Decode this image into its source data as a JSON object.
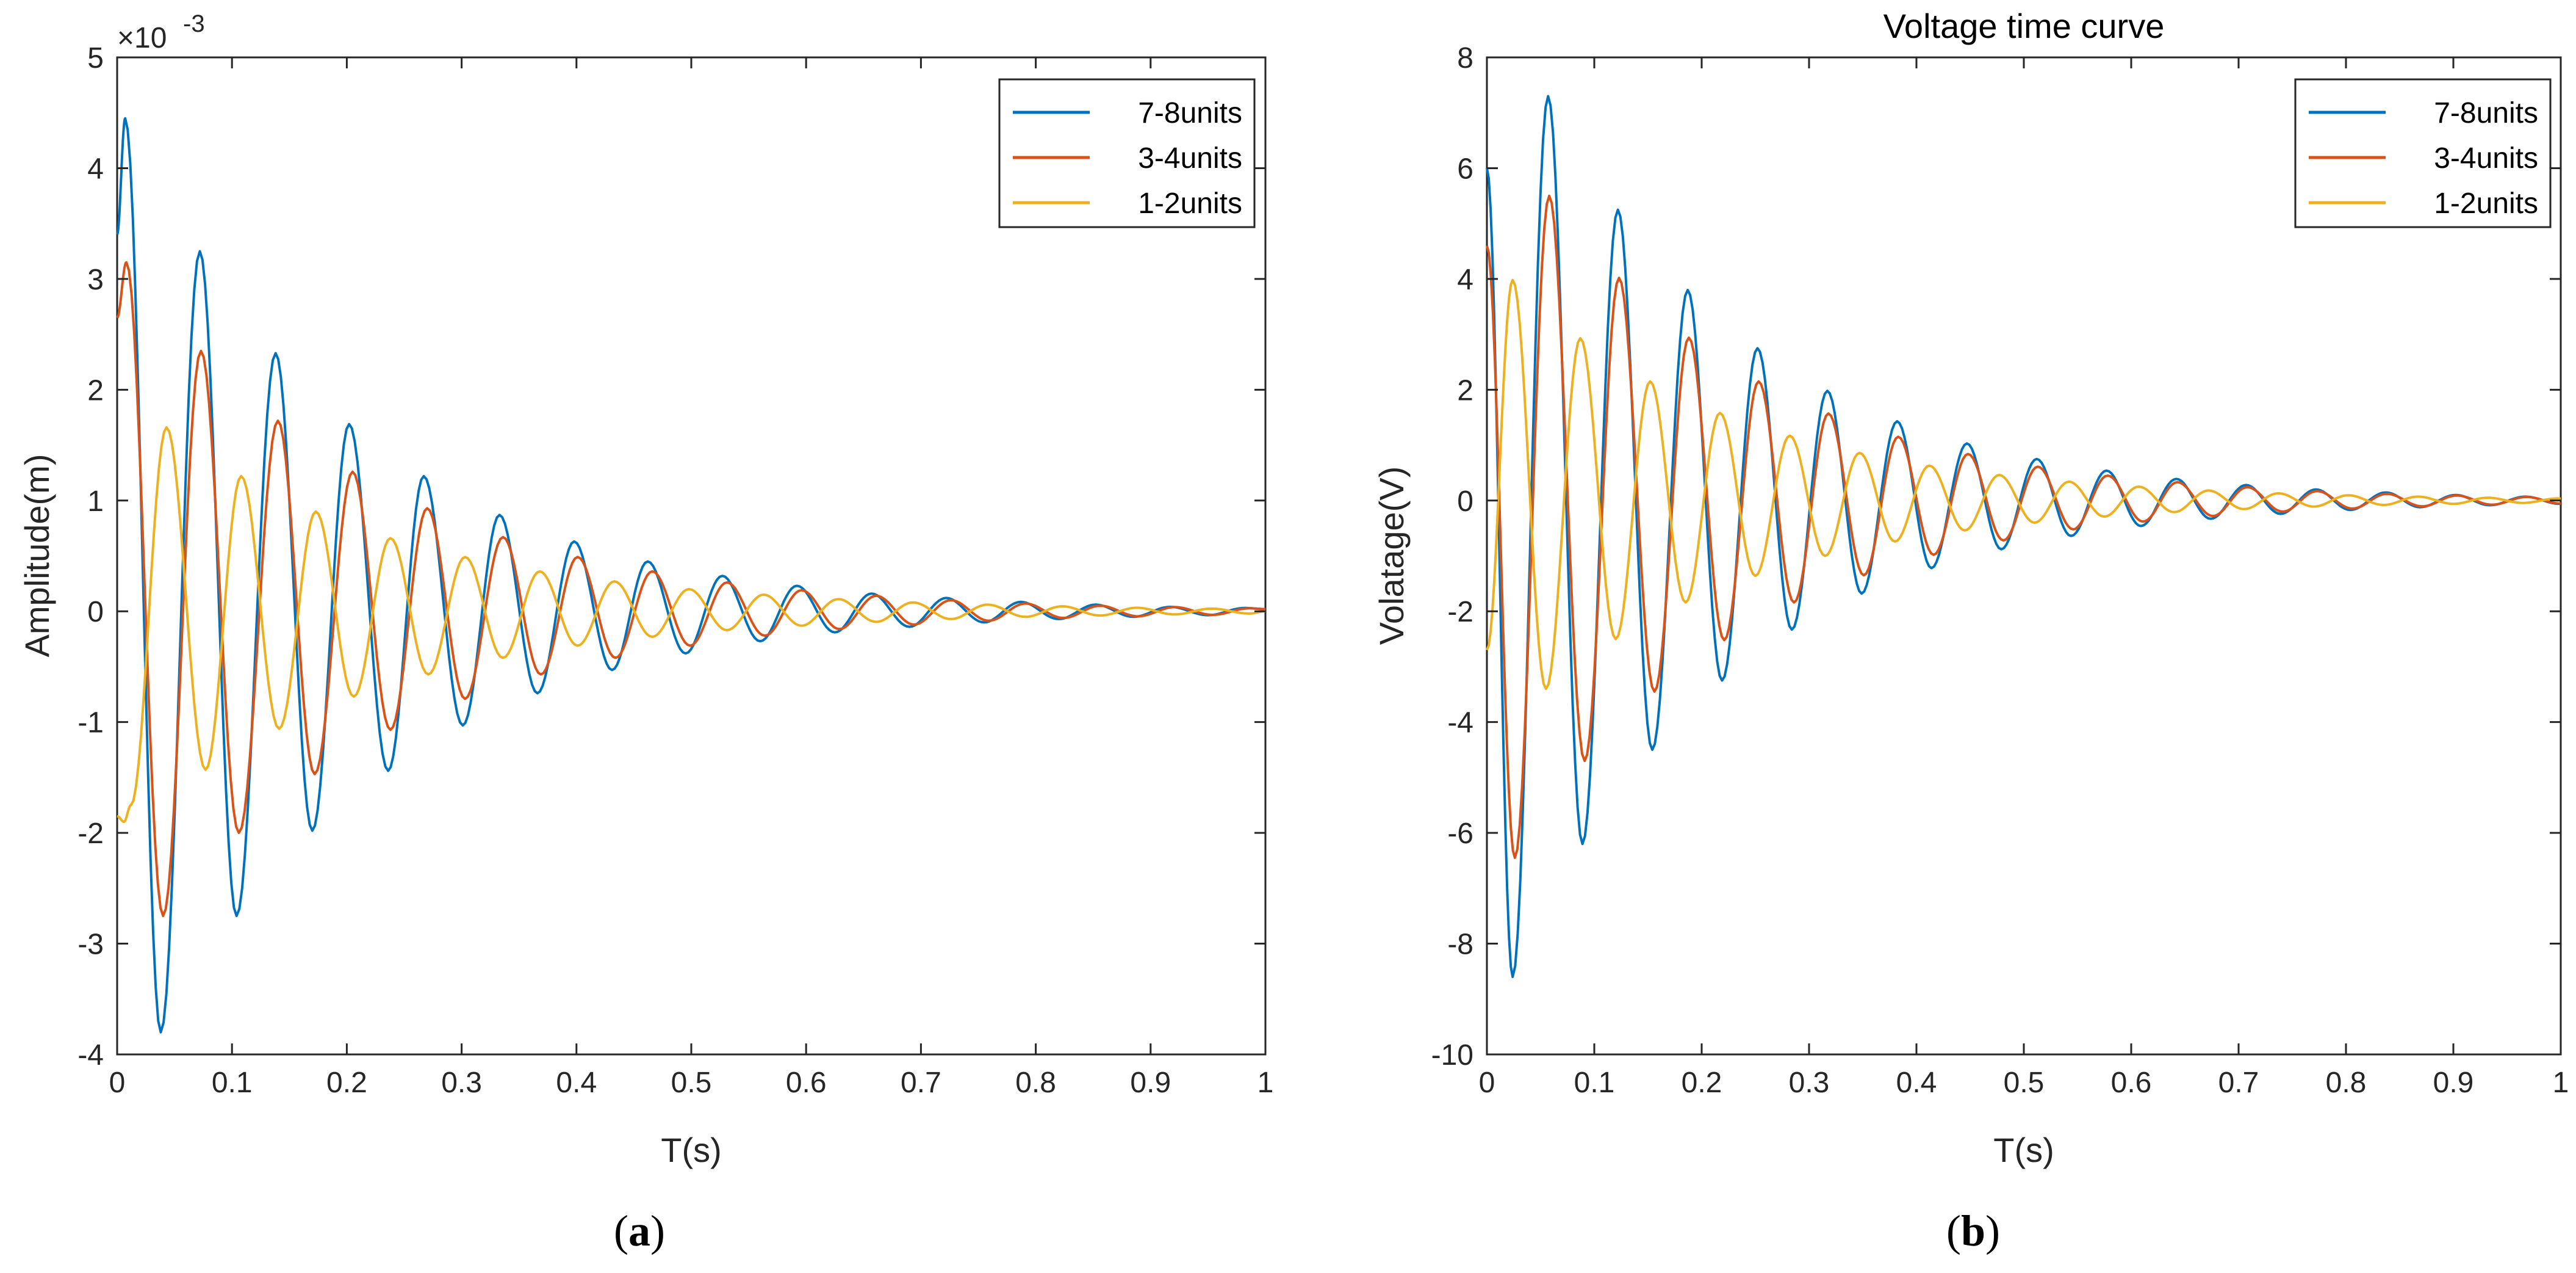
{
  "chart_data": [
    {
      "type": "line",
      "id": "a",
      "title": "",
      "xlabel": "T(s)",
      "ylabel": "Amplitude(m)",
      "exponent_label": "×10",
      "exponent_power": "-3",
      "xlim": [
        0,
        1
      ],
      "ylim": [
        -4,
        5
      ],
      "xticks": [
        0,
        0.1,
        0.2,
        0.3,
        0.4,
        0.5,
        0.6,
        0.7,
        0.8,
        0.9,
        1
      ],
      "xtick_labels": [
        "0",
        "0.1",
        "0.2",
        "0.3",
        "0.4",
        "0.5",
        "0.6",
        "0.7",
        "0.8",
        "0.9",
        "1"
      ],
      "yticks": [
        -4,
        -3,
        -2,
        -1,
        0,
        1,
        2,
        3,
        4,
        5
      ],
      "ytick_labels": [
        "-4",
        "-3",
        "-2",
        "-1",
        "0",
        "1",
        "2",
        "3",
        "4",
        "5"
      ],
      "legend_position": "top-right",
      "caption": "a",
      "series": [
        {
          "name": "7-8units",
          "color": "#0072BD",
          "peaks_t": [
            0,
            0.007,
            0.038,
            0.072,
            0.104,
            0.138,
            0.17,
            0.202,
            0.236,
            0.267,
            0.301,
            0.333,
            0.366,
            0.398,
            0.431,
            0.462,
            0.495,
            0.527,
            0.56,
            0.592,
            0.625,
            0.657,
            0.69,
            0.722,
            0.755,
            0.787,
            0.82,
            0.852,
            0.885,
            0.917,
            0.95,
            0.982,
            1.0
          ],
          "peaks_v": [
            3.4,
            4.45,
            -3.8,
            3.25,
            -2.75,
            2.33,
            -1.98,
            1.69,
            -1.44,
            1.22,
            -1.03,
            0.87,
            -0.74,
            0.63,
            -0.53,
            0.45,
            -0.38,
            0.32,
            -0.27,
            0.23,
            -0.19,
            0.16,
            -0.14,
            0.12,
            -0.1,
            0.085,
            -0.07,
            0.06,
            -0.05,
            0.04,
            -0.035,
            0.03,
            0.02
          ]
        },
        {
          "name": "3-4units",
          "color": "#D95319",
          "peaks_t": [
            0,
            0.008,
            0.04,
            0.073,
            0.106,
            0.14,
            0.172,
            0.205,
            0.238,
            0.27,
            0.303,
            0.336,
            0.369,
            0.401,
            0.434,
            0.466,
            0.499,
            0.531,
            0.564,
            0.596,
            0.629,
            0.661,
            0.694,
            0.726,
            0.759,
            0.791,
            0.824,
            0.856,
            0.889,
            0.921,
            0.954,
            0.986,
            1.0
          ],
          "peaks_v": [
            2.65,
            3.15,
            -2.75,
            2.35,
            -2.0,
            1.72,
            -1.47,
            1.26,
            -1.07,
            0.93,
            -0.79,
            0.67,
            -0.57,
            0.49,
            -0.42,
            0.36,
            -0.31,
            0.26,
            -0.22,
            0.19,
            -0.16,
            0.14,
            -0.12,
            0.1,
            -0.085,
            0.07,
            -0.06,
            0.05,
            -0.045,
            0.038,
            -0.032,
            0.027,
            0.02
          ]
        },
        {
          "name": "1-2units",
          "color": "#EDB120",
          "peaks_t": [
            0,
            0.006,
            0.012,
            0.043,
            0.077,
            0.108,
            0.141,
            0.173,
            0.206,
            0.238,
            0.271,
            0.303,
            0.336,
            0.368,
            0.401,
            0.433,
            0.466,
            0.498,
            0.531,
            0.563,
            0.596,
            0.628,
            0.661,
            0.693,
            0.726,
            0.758,
            0.791,
            0.823,
            0.856,
            0.888,
            0.921,
            0.953,
            0.986,
            1.0
          ],
          "peaks_v": [
            -1.85,
            -1.9,
            -1.75,
            1.66,
            -1.43,
            1.22,
            -1.06,
            0.9,
            -0.77,
            0.66,
            -0.57,
            0.49,
            -0.42,
            0.36,
            -0.31,
            0.27,
            -0.23,
            0.2,
            -0.17,
            0.15,
            -0.13,
            0.11,
            -0.095,
            0.08,
            -0.07,
            0.06,
            -0.05,
            0.045,
            -0.038,
            0.032,
            -0.028,
            0.024,
            -0.02,
            0.0
          ]
        }
      ]
    },
    {
      "type": "line",
      "id": "b",
      "title": "Voltage time curve",
      "xlabel": "T(s)",
      "ylabel": "Volatage(V)",
      "xlim": [
        0,
        1
      ],
      "ylim": [
        -10,
        8
      ],
      "xticks": [
        0,
        0.1,
        0.2,
        0.3,
        0.4,
        0.5,
        0.6,
        0.7,
        0.8,
        0.9,
        1
      ],
      "xtick_labels": [
        "0",
        "0.1",
        "0.2",
        "0.3",
        "0.4",
        "0.5",
        "0.6",
        "0.7",
        "0.8",
        "0.9",
        "1"
      ],
      "yticks": [
        -10,
        -8,
        -6,
        -4,
        -2,
        0,
        2,
        4,
        6,
        8
      ],
      "ytick_labels": [
        "-10",
        "-8",
        "-6",
        "-4",
        "-2",
        "0",
        "2",
        "4",
        "6",
        "8"
      ],
      "legend_position": "top-right",
      "caption": "b",
      "series": [
        {
          "name": "7-8units",
          "color": "#0072BD",
          "peaks_t": [
            0,
            0.024,
            0.057,
            0.089,
            0.122,
            0.154,
            0.187,
            0.219,
            0.252,
            0.284,
            0.317,
            0.349,
            0.382,
            0.414,
            0.447,
            0.479,
            0.512,
            0.544,
            0.577,
            0.609,
            0.642,
            0.674,
            0.707,
            0.739,
            0.772,
            0.804,
            0.837,
            0.869,
            0.902,
            0.934,
            0.967,
            0.999,
            1.0
          ],
          "peaks_v": [
            6.0,
            -8.6,
            7.3,
            -6.2,
            5.25,
            -4.5,
            3.8,
            -3.25,
            2.75,
            -2.33,
            1.98,
            -1.68,
            1.43,
            -1.22,
            1.03,
            -0.88,
            0.75,
            -0.64,
            0.54,
            -0.46,
            0.39,
            -0.33,
            0.28,
            -0.24,
            0.2,
            -0.17,
            0.145,
            -0.12,
            0.1,
            -0.085,
            0.07,
            -0.06,
            -0.06
          ]
        },
        {
          "name": "3-4units",
          "color": "#D95319",
          "peaks_t": [
            0,
            0.026,
            0.058,
            0.091,
            0.123,
            0.156,
            0.188,
            0.221,
            0.253,
            0.286,
            0.318,
            0.351,
            0.383,
            0.416,
            0.448,
            0.481,
            0.513,
            0.546,
            0.578,
            0.611,
            0.643,
            0.676,
            0.708,
            0.741,
            0.773,
            0.806,
            0.838,
            0.871,
            0.903,
            0.936,
            0.968,
            1.0
          ],
          "peaks_v": [
            4.6,
            -6.45,
            5.5,
            -4.7,
            4.02,
            -3.45,
            2.94,
            -2.52,
            2.15,
            -1.84,
            1.57,
            -1.35,
            1.15,
            -0.98,
            0.84,
            -0.72,
            0.61,
            -0.52,
            0.45,
            -0.38,
            0.33,
            -0.28,
            0.24,
            -0.2,
            0.17,
            -0.145,
            0.12,
            -0.105,
            0.09,
            -0.075,
            0.064,
            -0.055
          ]
        },
        {
          "name": "1-2units",
          "color": "#EDB120",
          "peaks_t": [
            0,
            0.024,
            0.055,
            0.087,
            0.12,
            0.152,
            0.185,
            0.217,
            0.25,
            0.282,
            0.315,
            0.347,
            0.38,
            0.412,
            0.445,
            0.477,
            0.51,
            0.542,
            0.575,
            0.607,
            0.64,
            0.672,
            0.705,
            0.737,
            0.77,
            0.802,
            0.835,
            0.867,
            0.9,
            0.932,
            0.965,
            0.997,
            1.0
          ],
          "peaks_v": [
            -2.7,
            3.98,
            -3.4,
            2.93,
            -2.5,
            2.15,
            -1.84,
            1.58,
            -1.36,
            1.17,
            -1.0,
            0.86,
            -0.74,
            0.63,
            -0.54,
            0.46,
            -0.4,
            0.34,
            -0.29,
            0.25,
            -0.21,
            0.18,
            -0.155,
            0.13,
            -0.11,
            0.095,
            -0.08,
            0.07,
            -0.06,
            0.05,
            -0.043,
            0.037,
            0.036
          ]
        }
      ]
    }
  ]
}
